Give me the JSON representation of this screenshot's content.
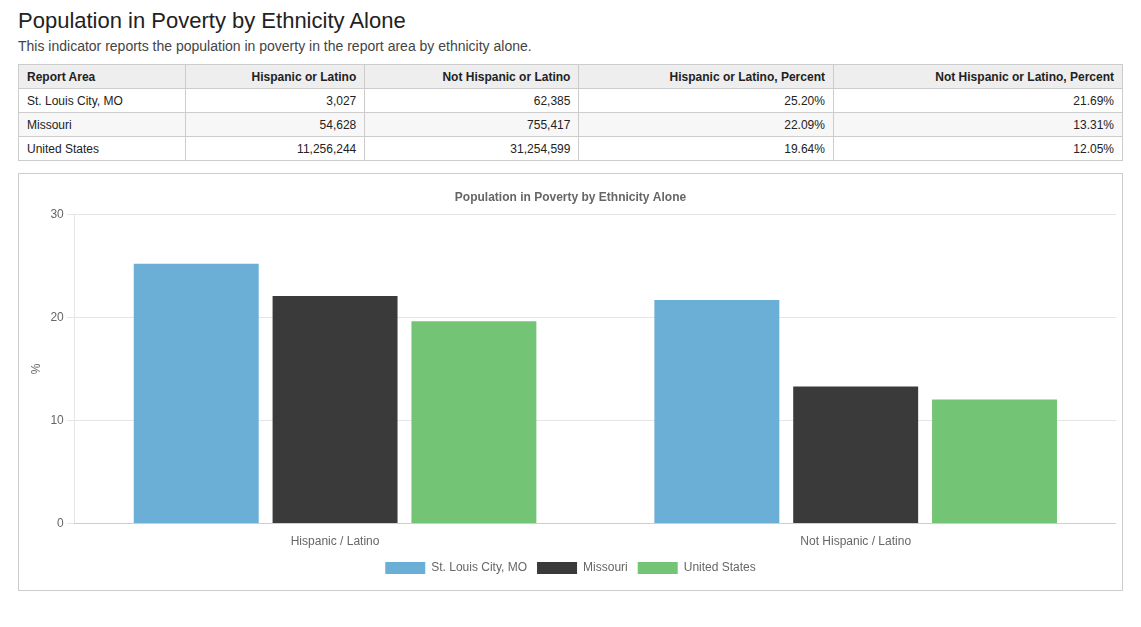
{
  "title": "Population in Poverty by Ethnicity Alone",
  "subtitle": "This indicator reports the population in poverty in the report area by ethnicity alone.",
  "table": {
    "headers": [
      "Report Area",
      "Hispanic or Latino",
      "Not Hispanic or Latino",
      "Hispanic or Latino, Percent",
      "Not Hispanic or Latino, Percent"
    ],
    "rows": [
      [
        "St. Louis City, MO",
        "3,027",
        "62,385",
        "25.20%",
        "21.69%"
      ],
      [
        "Missouri",
        "54,628",
        "755,417",
        "22.09%",
        "13.31%"
      ],
      [
        "United States",
        "11,256,244",
        "31,254,599",
        "19.64%",
        "12.05%"
      ]
    ]
  },
  "chart_data": {
    "type": "bar",
    "title": "Population in Poverty by Ethnicity Alone",
    "categories": [
      "Hispanic / Latino",
      "Not Hispanic / Latino"
    ],
    "series": [
      {
        "name": "St. Louis City, MO",
        "color": "#6baed6",
        "values": [
          25.2,
          21.69
        ]
      },
      {
        "name": "Missouri",
        "color": "#3a3a3a",
        "values": [
          22.09,
          13.31
        ]
      },
      {
        "name": "United States",
        "color": "#74c476",
        "values": [
          19.64,
          12.05
        ]
      }
    ],
    "ylabel": "%",
    "ylim": [
      0,
      30
    ],
    "yticks": [
      0,
      10,
      20,
      30
    ],
    "grid": true,
    "legend": "bottom"
  }
}
